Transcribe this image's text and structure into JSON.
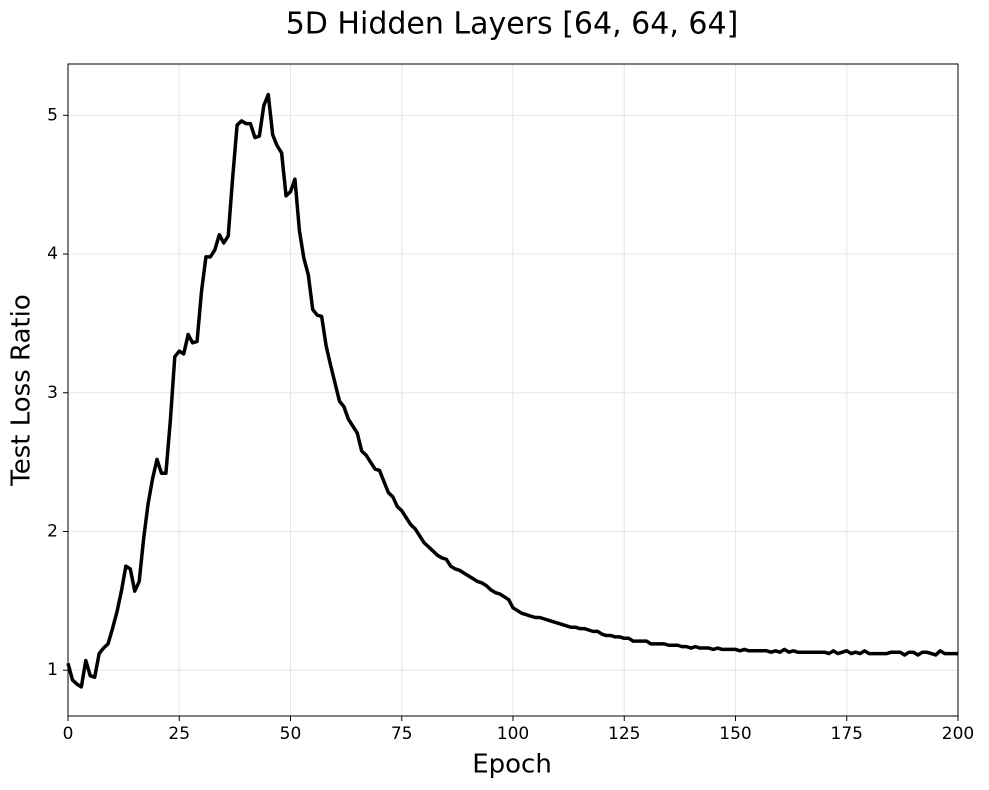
{
  "chart_data": {
    "type": "line",
    "title": "5D Hidden Layers [64, 64, 64]",
    "x_label": "Epoch",
    "y_label": "Test Loss Ratio",
    "x": [
      0,
      1,
      2,
      3,
      4,
      5,
      6,
      7,
      8,
      9,
      10,
      11,
      12,
      13,
      14,
      15,
      16,
      17,
      18,
      19,
      20,
      21,
      22,
      23,
      24,
      25,
      26,
      27,
      28,
      29,
      30,
      31,
      32,
      33,
      34,
      35,
      36,
      37,
      38,
      39,
      40,
      41,
      42,
      43,
      44,
      45,
      46,
      47,
      48,
      49,
      50,
      51,
      52,
      53,
      54,
      55,
      56,
      57,
      58,
      59,
      60,
      61,
      62,
      63,
      64,
      65,
      66,
      67,
      68,
      69,
      70,
      71,
      72,
      73,
      74,
      75,
      76,
      77,
      78,
      79,
      80,
      81,
      82,
      83,
      84,
      85,
      86,
      87,
      88,
      89,
      90,
      91,
      92,
      93,
      94,
      95,
      96,
      97,
      98,
      99,
      100,
      101,
      102,
      103,
      104,
      105,
      106,
      107,
      108,
      109,
      110,
      111,
      112,
      113,
      114,
      115,
      116,
      117,
      118,
      119,
      120,
      121,
      122,
      123,
      124,
      125,
      126,
      127,
      128,
      129,
      130,
      131,
      132,
      133,
      134,
      135,
      136,
      137,
      138,
      139,
      140,
      141,
      142,
      143,
      144,
      145,
      146,
      147,
      148,
      149,
      150,
      151,
      152,
      153,
      154,
      155,
      156,
      157,
      158,
      159,
      160,
      161,
      162,
      163,
      164,
      165,
      166,
      167,
      168,
      169,
      170,
      171,
      172,
      173,
      174,
      175,
      176,
      177,
      178,
      179,
      180,
      181,
      182,
      183,
      184,
      185,
      186,
      187,
      188,
      189,
      190,
      191,
      192,
      193,
      194,
      195,
      196,
      197,
      198,
      199,
      200
    ],
    "series": [
      {
        "color": "#000000",
        "values": [
          1.05,
          0.93,
          0.9,
          0.88,
          1.07,
          0.96,
          0.95,
          1.12,
          1.16,
          1.19,
          1.3,
          1.42,
          1.57,
          1.75,
          1.73,
          1.57,
          1.64,
          1.95,
          2.2,
          2.38,
          2.52,
          2.42,
          2.42,
          2.8,
          3.26,
          3.3,
          3.28,
          3.42,
          3.36,
          3.37,
          3.73,
          3.98,
          3.98,
          4.03,
          4.14,
          4.08,
          4.13,
          4.55,
          4.93,
          4.96,
          4.94,
          4.94,
          4.84,
          4.85,
          5.07,
          5.15,
          4.86,
          4.78,
          4.73,
          4.42,
          4.45,
          4.54,
          4.17,
          3.97,
          3.85,
          3.6,
          3.56,
          3.55,
          3.34,
          3.2,
          3.07,
          2.94,
          2.9,
          2.81,
          2.76,
          2.71,
          2.58,
          2.55,
          2.5,
          2.45,
          2.44,
          2.36,
          2.28,
          2.25,
          2.18,
          2.15,
          2.1,
          2.05,
          2.02,
          1.97,
          1.92,
          1.89,
          1.86,
          1.83,
          1.81,
          1.8,
          1.75,
          1.73,
          1.72,
          1.7,
          1.68,
          1.66,
          1.64,
          1.63,
          1.61,
          1.58,
          1.56,
          1.55,
          1.53,
          1.51,
          1.45,
          1.43,
          1.41,
          1.4,
          1.39,
          1.38,
          1.38,
          1.37,
          1.36,
          1.35,
          1.34,
          1.33,
          1.32,
          1.31,
          1.31,
          1.3,
          1.3,
          1.29,
          1.28,
          1.28,
          1.26,
          1.25,
          1.25,
          1.24,
          1.24,
          1.23,
          1.23,
          1.21,
          1.21,
          1.21,
          1.21,
          1.19,
          1.19,
          1.19,
          1.19,
          1.18,
          1.18,
          1.18,
          1.17,
          1.17,
          1.16,
          1.17,
          1.16,
          1.16,
          1.16,
          1.15,
          1.16,
          1.15,
          1.15,
          1.15,
          1.15,
          1.14,
          1.15,
          1.14,
          1.14,
          1.14,
          1.14,
          1.14,
          1.13,
          1.14,
          1.13,
          1.15,
          1.13,
          1.14,
          1.13,
          1.13,
          1.13,
          1.13,
          1.13,
          1.13,
          1.13,
          1.12,
          1.14,
          1.12,
          1.13,
          1.14,
          1.12,
          1.13,
          1.12,
          1.14,
          1.12,
          1.12,
          1.12,
          1.12,
          1.12,
          1.13,
          1.13,
          1.13,
          1.11,
          1.13,
          1.13,
          1.11,
          1.13,
          1.13,
          1.12,
          1.11,
          1.14,
          1.12,
          1.12,
          1.12,
          1.12
        ]
      }
    ],
    "xlim": [
      0,
      200
    ],
    "xticks": [
      0,
      25,
      50,
      75,
      100,
      125,
      150,
      175,
      200
    ],
    "ylim": [
      0.67,
      5.37
    ],
    "yticks": [
      1,
      2,
      3,
      4,
      5
    ],
    "grid": true
  }
}
